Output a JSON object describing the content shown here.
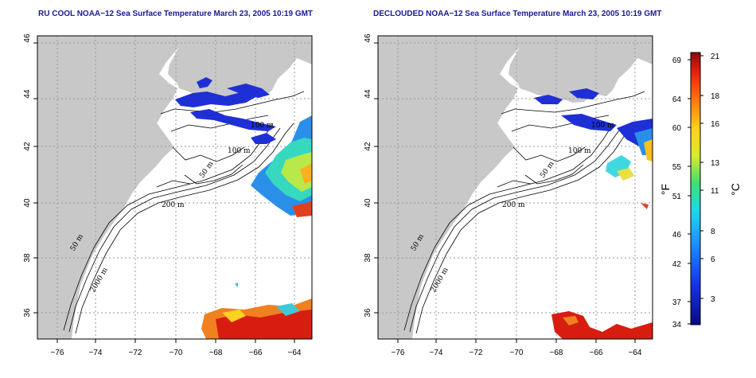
{
  "titles": {
    "left": "RU COOL NOAA−12 Sea Surface Temperature March 23, 2005 10:19 GMT",
    "right": "DECLOUDED NOAA−12 Sea Surface Temperature March 23, 2005 10:19 GMT"
  },
  "axes": {
    "x_ticks": [
      "−76",
      "−74",
      "−72",
      "−70",
      "−68",
      "−66",
      "−64"
    ],
    "y_ticks": [
      "36",
      "38",
      "40",
      "42",
      "44",
      "46"
    ]
  },
  "contours": {
    "left": [
      "100 m",
      "100 m",
      "50 m",
      "200 m",
      "50 m",
      "2000 m"
    ],
    "right": [
      "100 m",
      "100 m",
      "50 m",
      "200 m",
      "50 m",
      "2000 m"
    ]
  },
  "colorbar": {
    "fahrenheit_label": "°F",
    "celsius_label": "°C",
    "fahrenheit_ticks": [
      "69",
      "64",
      "60",
      "55",
      "51",
      "46",
      "42",
      "37",
      "34"
    ],
    "celsius_ticks": [
      "21",
      "18",
      "16",
      "13",
      "11",
      "8",
      "6",
      "3"
    ]
  },
  "colors": {
    "land": "#c8c8c8",
    "ocean": "#ffffff",
    "grid": "#9a9a9a",
    "cold": "#1f2fd6",
    "warm": "#d81d10",
    "title": "#1a1a99"
  }
}
